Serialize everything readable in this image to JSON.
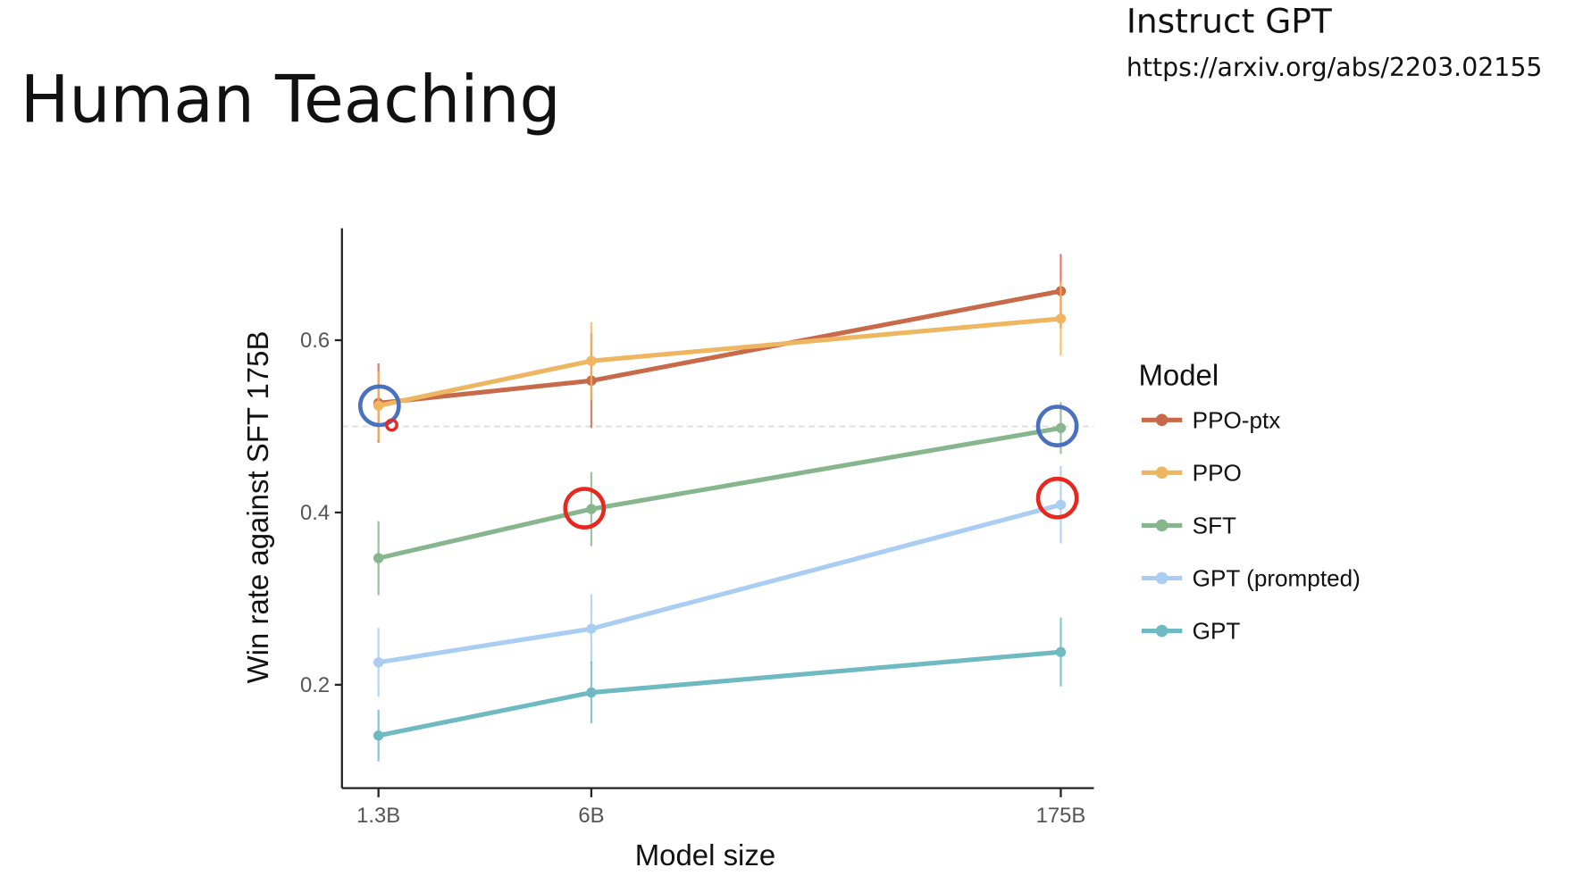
{
  "slide": {
    "title": "Human Teaching",
    "reference": "Instruct GPT",
    "url": "https://arxiv.org/abs/2203.02155"
  },
  "chart_data": {
    "type": "line",
    "x_label": "Model size",
    "y_label": "Win rate against SFT 175B",
    "x": [
      1.3,
      6,
      175
    ],
    "xscale": "log",
    "xlim": [
      1,
      222
    ],
    "xticks": [
      {
        "value": 1.3,
        "label": "1.3B"
      },
      {
        "value": 6,
        "label": "6B"
      },
      {
        "value": 175,
        "label": "175B"
      }
    ],
    "ylim": [
      0.08,
      0.73
    ],
    "yticks": [
      0.2,
      0.4,
      0.6
    ],
    "reference_line": 0.5,
    "legend_title": "Model",
    "legend": "right",
    "series": [
      {
        "name": "PPO-ptx",
        "color": "#c8694a",
        "values": [
          0.527,
          0.553,
          0.657
        ],
        "errors": [
          0.046,
          0.055,
          0.043
        ]
      },
      {
        "name": "PPO",
        "color": "#efb661",
        "values": [
          0.524,
          0.576,
          0.625
        ],
        "errors": [
          0.04,
          0.045,
          0.043
        ]
      },
      {
        "name": "SFT",
        "color": "#86b58e",
        "values": [
          0.347,
          0.404,
          0.498
        ],
        "errors": [
          0.043,
          0.043,
          0.03
        ]
      },
      {
        "name": "GPT (prompted)",
        "color": "#a9cdf3",
        "values": [
          0.226,
          0.265,
          0.409
        ],
        "errors": [
          0.04,
          0.04,
          0.045
        ]
      },
      {
        "name": "GPT",
        "color": "#6fb9c2",
        "values": [
          0.141,
          0.191,
          0.238
        ],
        "errors": [
          0.03,
          0.036,
          0.04
        ]
      }
    ]
  }
}
